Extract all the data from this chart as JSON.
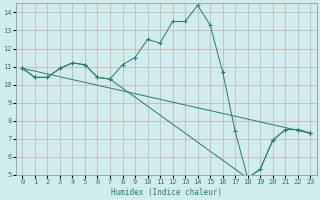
{
  "xlabel": "Humidex (Indice chaleur)",
  "bg_color": "#d0ecec",
  "grid_color": "#c8b8b8",
  "line_color": "#2a7a6a",
  "xlim": [
    -0.5,
    23.5
  ],
  "ylim": [
    5,
    14.5
  ],
  "yticks": [
    5,
    6,
    7,
    8,
    9,
    10,
    11,
    12,
    13,
    14
  ],
  "xticks": [
    0,
    1,
    2,
    3,
    4,
    5,
    6,
    7,
    8,
    9,
    10,
    11,
    12,
    13,
    14,
    15,
    16,
    17,
    18,
    19,
    20,
    21,
    22,
    23
  ],
  "lines": [
    {
      "x": [
        0,
        1,
        2,
        3,
        4,
        5,
        6,
        7,
        8,
        9,
        10,
        11,
        12,
        13,
        14,
        15,
        16,
        17,
        18,
        19,
        20,
        21,
        22,
        23
      ],
      "y": [
        10.9,
        10.4,
        10.4,
        10.9,
        11.2,
        11.1,
        10.4,
        10.3,
        11.1,
        11.5,
        12.5,
        12.3,
        13.5,
        13.5,
        14.4,
        13.3,
        10.7,
        7.4,
        4.8,
        5.3,
        6.9,
        7.5,
        7.5,
        7.3
      ]
    },
    {
      "x": [
        0,
        1,
        2,
        3,
        4,
        5,
        6,
        7,
        18,
        19,
        20,
        21,
        22,
        23
      ],
      "y": [
        10.9,
        10.4,
        10.4,
        10.9,
        11.2,
        11.1,
        10.4,
        10.3,
        4.8,
        5.3,
        6.9,
        7.5,
        7.5,
        7.3
      ]
    },
    {
      "x": [
        0,
        23
      ],
      "y": [
        10.9,
        7.3
      ]
    }
  ]
}
